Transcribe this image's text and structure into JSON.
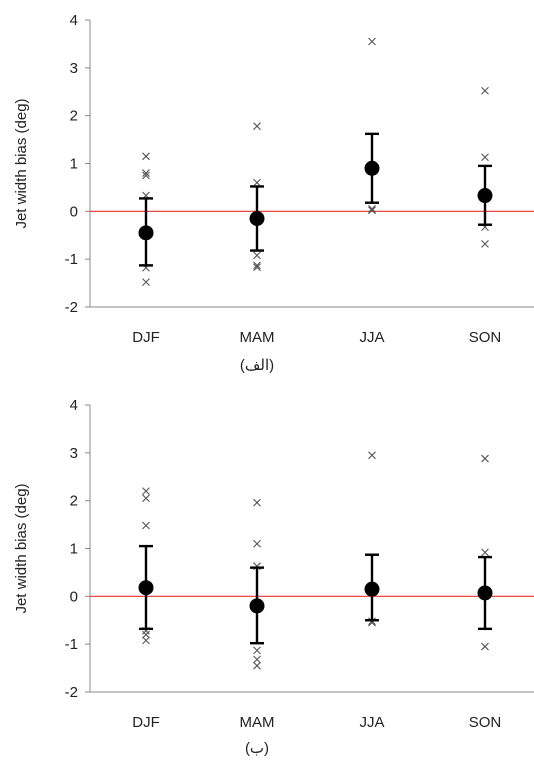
{
  "chart_data": [
    {
      "type": "scatter",
      "panel_label": "(الف)",
      "ylabel": "Jet width bias (deg)",
      "xlabel": "",
      "categories": [
        "DJF",
        "MAM",
        "JJA",
        "SON"
      ],
      "ylim": [
        -2,
        4
      ],
      "yticks": [
        -2,
        -1,
        0,
        1,
        2,
        3,
        4
      ],
      "reference_line": {
        "y": 0,
        "color": "#e8312b"
      },
      "mean": [
        -0.45,
        -0.15,
        0.9,
        0.33
      ],
      "error_low": [
        -1.13,
        -0.82,
        0.18,
        -0.28
      ],
      "error_high": [
        0.27,
        0.52,
        1.62,
        0.95
      ],
      "models": [
        [
          1.15,
          0.8,
          0.75,
          0.33,
          -1.18,
          -1.48
        ],
        [
          1.78,
          0.6,
          -0.92,
          -1.13,
          -1.17
        ],
        [
          3.55,
          0.05,
          0.02
        ],
        [
          2.52,
          1.13,
          -0.33,
          -0.68
        ]
      ],
      "grid": false,
      "legend": "none"
    },
    {
      "type": "scatter",
      "panel_label": "(ب)",
      "ylabel": "Jet width bias (deg)",
      "xlabel": "",
      "categories": [
        "DJF",
        "MAM",
        "JJA",
        "SON"
      ],
      "ylim": [
        -2,
        4
      ],
      "yticks": [
        -2,
        -1,
        0,
        1,
        2,
        3,
        4
      ],
      "reference_line": {
        "y": 0,
        "color": "#e8312b"
      },
      "mean": [
        0.18,
        -0.2,
        0.15,
        0.07
      ],
      "error_low": [
        -0.68,
        -0.98,
        -0.5,
        -0.68
      ],
      "error_high": [
        1.05,
        0.6,
        0.87,
        0.82
      ],
      "models": [
        [
          2.2,
          2.05,
          1.48,
          -0.72,
          -0.8,
          -0.92
        ],
        [
          1.96,
          1.1,
          0.63,
          -1.13,
          -1.32,
          -1.45
        ],
        [
          2.95,
          -0.52,
          -0.55
        ],
        [
          2.88,
          0.92,
          -1.05
        ]
      ],
      "grid": false,
      "legend": "none"
    }
  ]
}
